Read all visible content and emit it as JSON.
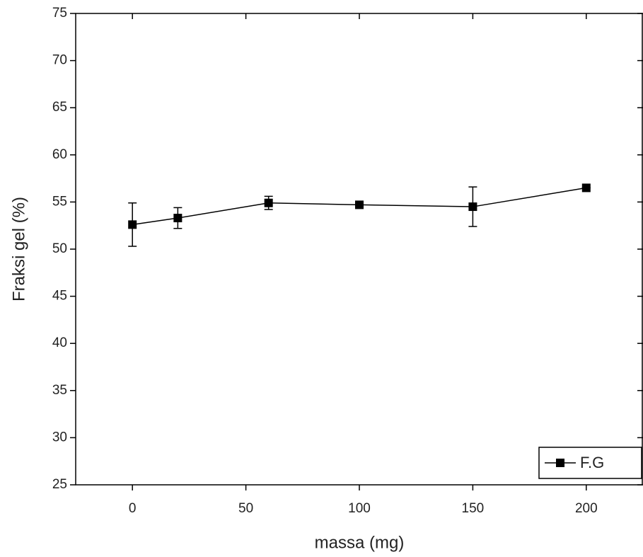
{
  "chart_data": {
    "type": "line",
    "x_label": "massa (mg)",
    "y_label": "Fraksi gel (%)",
    "x": [
      0,
      20,
      60,
      100,
      150,
      200
    ],
    "series": [
      {
        "name": "F.G",
        "color": "#000000",
        "values": [
          52.6,
          53.3,
          54.9,
          54.7,
          54.5,
          56.5
        ],
        "errors": [
          2.3,
          1.1,
          0.7,
          0.3,
          2.1,
          0
        ]
      }
    ],
    "xlim": [
      -25,
      225
    ],
    "xticks": [
      0,
      50,
      100,
      150,
      200
    ],
    "ylim": [
      25,
      75
    ],
    "yticks": [
      25,
      30,
      35,
      40,
      45,
      50,
      55,
      60,
      65,
      70,
      75
    ],
    "legend": "lower right"
  }
}
